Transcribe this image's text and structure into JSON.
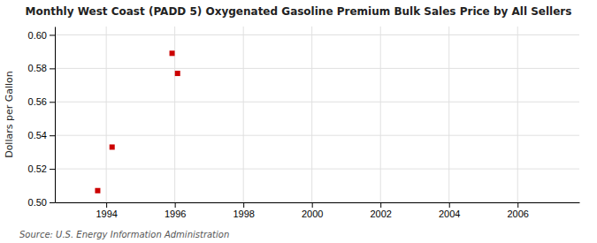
{
  "chart_data": {
    "type": "scatter",
    "title": "Monthly West Coast (PADD 5) Oxygenated Gasoline Premium Bulk Sales Price by All Sellers",
    "ylabel": "Dollars per Gallon",
    "source": "Source: U.S. Energy Information Administration",
    "x": [
      1993.75,
      1994.17,
      1995.92,
      1996.08
    ],
    "values": [
      0.507,
      0.533,
      0.589,
      0.577
    ],
    "color": "#cc0000",
    "marker": "square",
    "xlim": [
      1992.5,
      2007.8
    ],
    "ylim": [
      0.5,
      0.605
    ],
    "xticks": [
      1994,
      1996,
      1998,
      2000,
      2002,
      2004,
      2006
    ],
    "yticks": [
      {
        "value": 0.5,
        "label": "0.50"
      },
      0.52,
      0.54,
      0.56,
      0.58,
      {
        "value": 0.6,
        "label": "0.60"
      }
    ],
    "grid": true
  }
}
